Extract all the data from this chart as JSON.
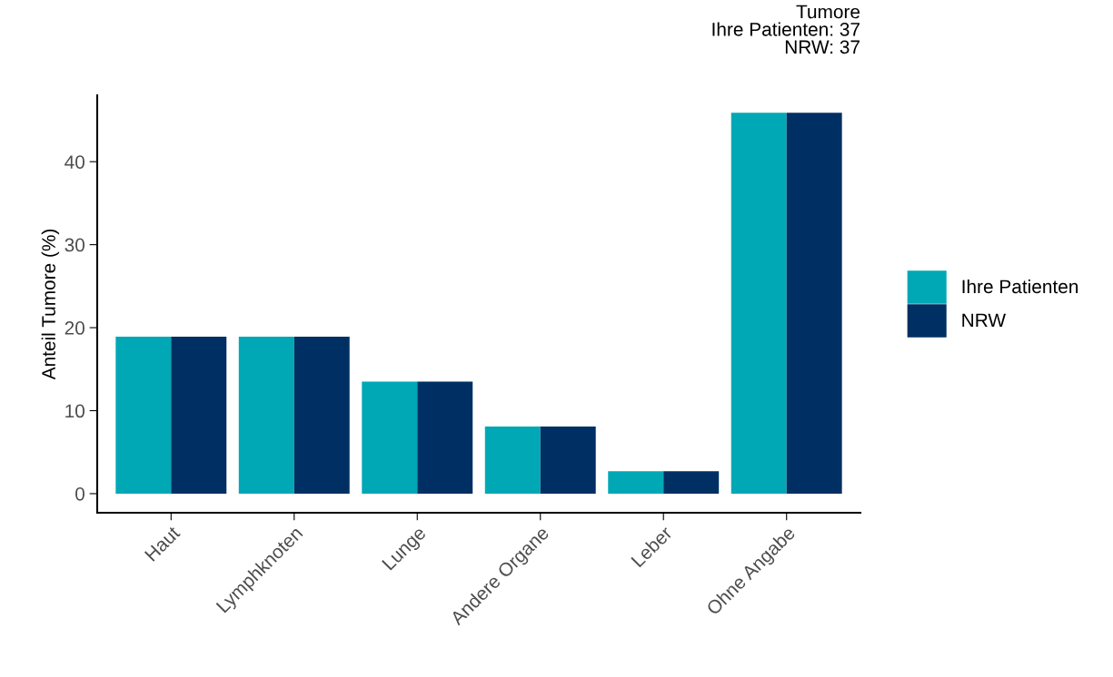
{
  "chart_data": {
    "type": "bar",
    "title": "Tumore",
    "annotations": [
      "Ihre Patienten: 37",
      "NRW: 37"
    ],
    "ylabel": "Anteil Tumore (%)",
    "categories": [
      "Haut",
      "Lymphknoten",
      "Lunge",
      "Andere Organe",
      "Leber",
      "Ohne Angabe"
    ],
    "series": [
      {
        "name": "Ihre Patienten",
        "color": "#00a8b5",
        "values": [
          18.9,
          18.9,
          13.5,
          8.1,
          2.7,
          45.9
        ]
      },
      {
        "name": "NRW",
        "color": "#003063",
        "values": [
          18.9,
          18.9,
          13.5,
          8.1,
          2.7,
          45.9
        ]
      }
    ],
    "ylim": [
      -2.3,
      48
    ],
    "yticks": [
      0,
      10,
      20,
      30,
      40
    ],
    "grid": false,
    "legend": "right"
  }
}
